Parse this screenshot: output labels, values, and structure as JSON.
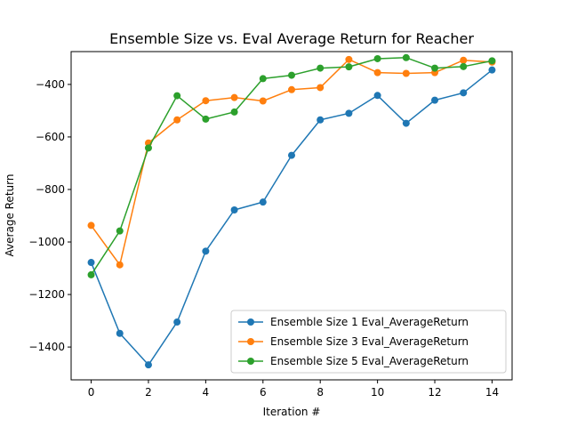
{
  "chart_data": {
    "type": "line",
    "title": "Ensemble Size vs. Eval Average Return for Reacher",
    "xlabel": "Iteration #",
    "ylabel": "Average Return",
    "xlim": [
      -0.7,
      14.7
    ],
    "ylim": [
      -1525,
      -275
    ],
    "xticks": [
      0,
      2,
      4,
      6,
      8,
      10,
      12,
      14
    ],
    "yticks": [
      -1400,
      -1200,
      -1000,
      -800,
      -600,
      -400
    ],
    "grid": false,
    "legend_position": "lower-right",
    "x": [
      0,
      1,
      2,
      3,
      4,
      5,
      6,
      7,
      8,
      9,
      10,
      11,
      12,
      13,
      14
    ],
    "series": [
      {
        "name": "Ensemble Size 1 Eval_AverageReturn",
        "color": "#1f77b4",
        "values": [
          -1078,
          -1348,
          -1468,
          -1305,
          -1035,
          -878,
          -848,
          -670,
          -535,
          -510,
          -442,
          -548,
          -460,
          -432,
          -345
        ]
      },
      {
        "name": "Ensemble Size 3 Eval_AverageReturn",
        "color": "#ff7f0e",
        "values": [
          -937,
          -1087,
          -623,
          -535,
          -462,
          -450,
          -463,
          -420,
          -412,
          -305,
          -355,
          -358,
          -355,
          -308,
          -315
        ]
      },
      {
        "name": "Ensemble Size 5 Eval_AverageReturn",
        "color": "#2ca02c",
        "values": [
          -1125,
          -958,
          -642,
          -443,
          -532,
          -505,
          -378,
          -365,
          -338,
          -333,
          -302,
          -298,
          -338,
          -332,
          -310
        ]
      }
    ]
  }
}
